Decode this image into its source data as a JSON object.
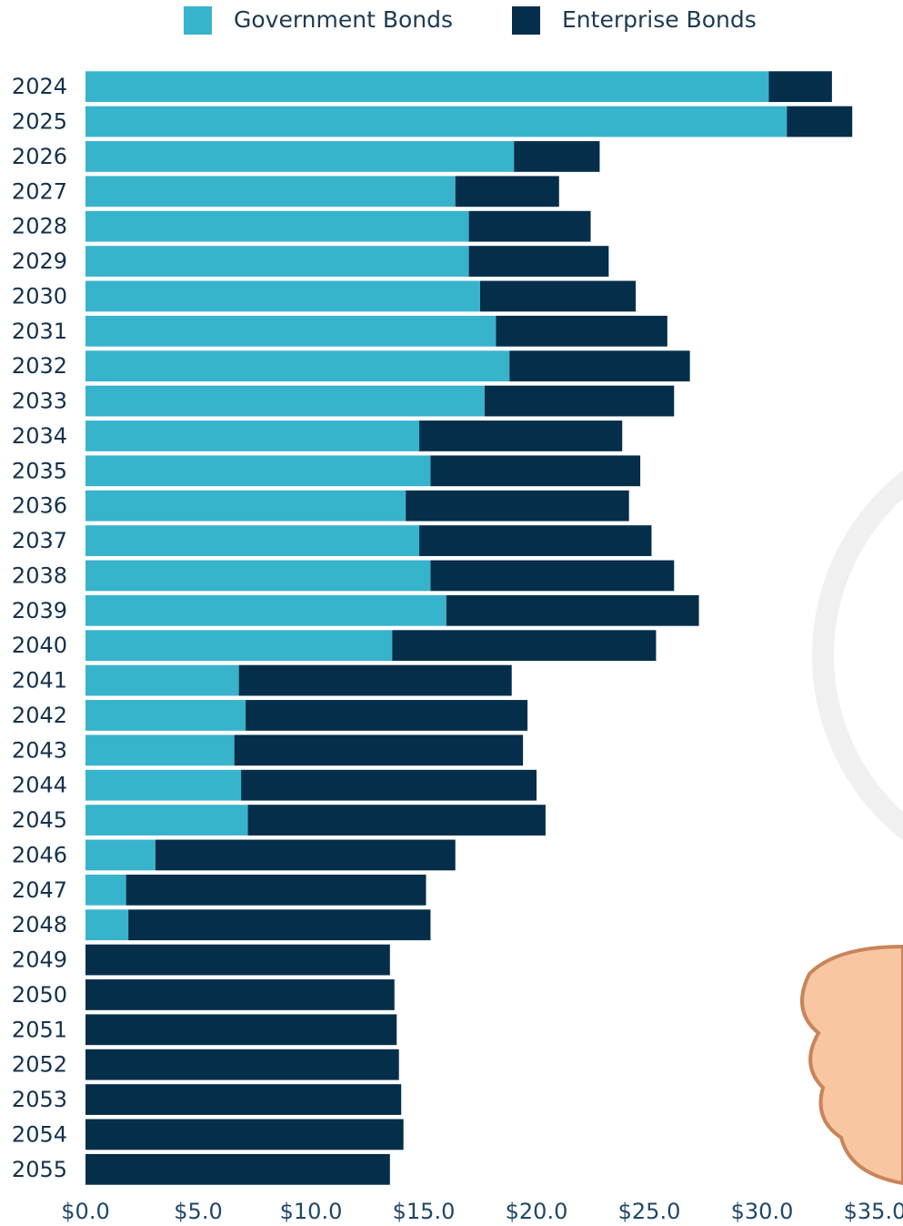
{
  "chart_data": {
    "type": "stacked-barh",
    "categories": [
      "2024",
      "2025",
      "2026",
      "2027",
      "2028",
      "2029",
      "2030",
      "2031",
      "2032",
      "2033",
      "2034",
      "2035",
      "2036",
      "2037",
      "2038",
      "2039",
      "2040",
      "2041",
      "2042",
      "2043",
      "2044",
      "2045",
      "2046",
      "2047",
      "2048",
      "2049",
      "2050",
      "2051",
      "2052",
      "2053",
      "2054",
      "2055"
    ],
    "series": [
      {
        "name": "Government Bonds",
        "color": "#38b3cc",
        "values": [
          30.3,
          31.1,
          19.0,
          16.4,
          17.0,
          17.0,
          17.5,
          18.2,
          18.8,
          17.7,
          14.8,
          15.3,
          14.2,
          14.8,
          15.3,
          16.0,
          13.6,
          6.8,
          7.1,
          6.6,
          6.9,
          7.2,
          3.1,
          1.8,
          1.9,
          0,
          0,
          0,
          0,
          0,
          0,
          0
        ]
      },
      {
        "name": "Enterprise Bonds",
        "color": "#052e4a",
        "values": [
          2.8,
          2.9,
          3.8,
          4.6,
          5.4,
          6.2,
          6.9,
          7.6,
          8.0,
          8.4,
          9.0,
          9.3,
          9.9,
          10.3,
          10.8,
          11.2,
          11.7,
          12.1,
          12.5,
          12.8,
          13.1,
          13.2,
          13.3,
          13.3,
          13.4,
          13.5,
          13.7,
          13.8,
          13.9,
          14.0,
          14.1,
          13.5
        ]
      }
    ],
    "xlim": [
      0,
      35
    ],
    "xticks": [
      {
        "value": 0,
        "label": "$0.0"
      },
      {
        "value": 5,
        "label": "$5.0"
      },
      {
        "value": 10,
        "label": "$10.0"
      },
      {
        "value": 15,
        "label": "$15.0"
      },
      {
        "value": 20,
        "label": "$20.0"
      },
      {
        "value": 25,
        "label": "$25.0"
      },
      {
        "value": 30,
        "label": "$30.0"
      },
      {
        "value": 35,
        "label": "$35.0"
      }
    ],
    "legend": "top"
  }
}
